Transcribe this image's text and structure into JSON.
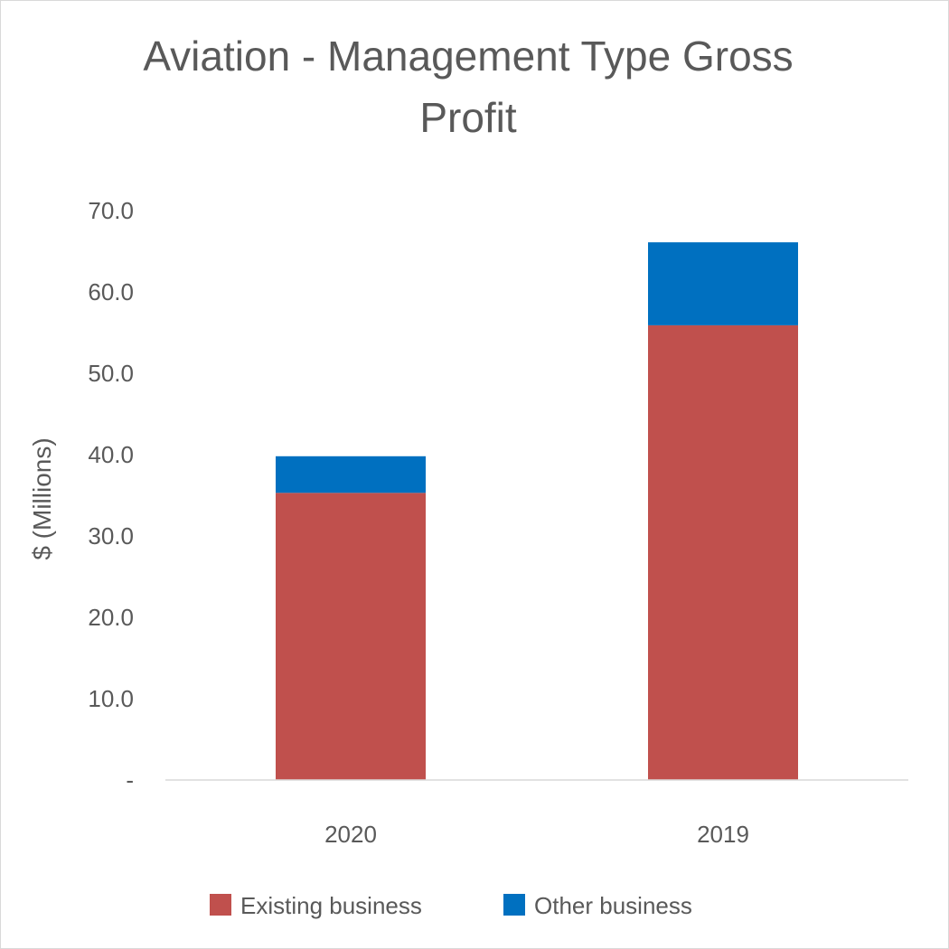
{
  "chart_data": {
    "type": "bar",
    "stacked": true,
    "title_lines": [
      "Aviation - Management Type Gross",
      "Profit"
    ],
    "ylabel": "$ (Millions)",
    "xlabel": "",
    "categories": [
      "2020",
      "2019"
    ],
    "series": [
      {
        "name": "Existing business",
        "color": "#C0504D",
        "values": [
          35.3,
          55.9
        ]
      },
      {
        "name": "Other business",
        "color": "#0070C0",
        "values": [
          4.5,
          10.2
        ]
      }
    ],
    "ylim": [
      0,
      70
    ],
    "yticks": [
      0,
      10,
      20,
      30,
      40,
      50,
      60,
      70
    ],
    "ytick_labels": [
      "-",
      "10.0",
      "20.0",
      "30.0",
      "40.0",
      "50.0",
      "60.0",
      "70.0"
    ],
    "grid": false,
    "legend_position": "bottom"
  }
}
